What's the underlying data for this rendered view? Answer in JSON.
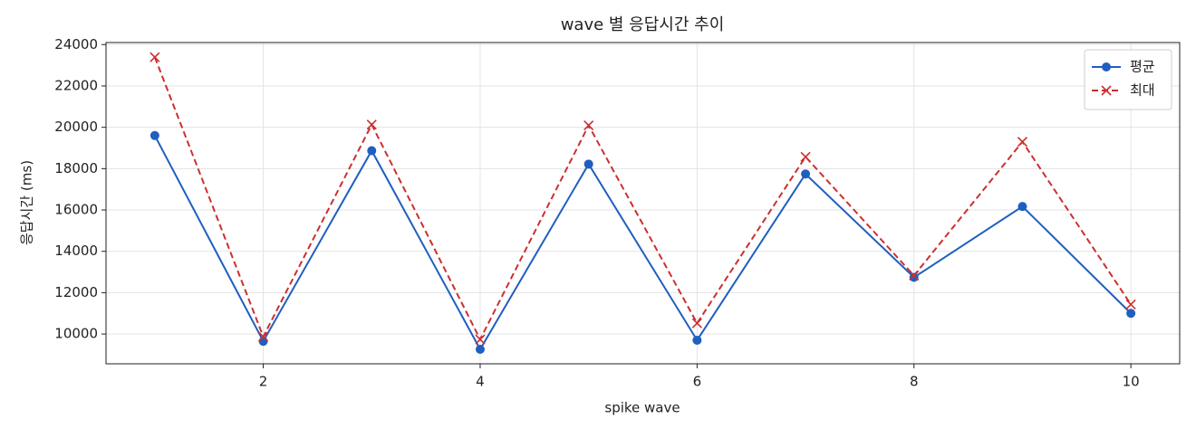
{
  "chart_data": {
    "type": "line",
    "title": "wave 별 응답시간 추이",
    "xlabel": "spike wave",
    "ylabel": "응답시간 (ms)",
    "x": [
      1,
      2,
      3,
      4,
      5,
      6,
      7,
      8,
      9,
      10
    ],
    "series": [
      {
        "name": "평균",
        "color": "#1f5fbf",
        "marker": "o",
        "dash": "solid",
        "values": [
          19600,
          9650,
          18870,
          9260,
          18220,
          9700,
          17740,
          12740,
          16170,
          11000
        ]
      },
      {
        "name": "최대",
        "color": "#cc2f2f",
        "marker": "x",
        "dash": "dashed",
        "values": [
          23390,
          9870,
          20130,
          9740,
          20090,
          10520,
          18570,
          12830,
          19300,
          11430
        ]
      }
    ],
    "xlim": [
      0.55,
      10.45
    ],
    "xticks": [
      2,
      4,
      6,
      8,
      10
    ],
    "ylim": [
      8560,
      24100
    ],
    "yticks": [
      10000,
      12000,
      14000,
      16000,
      18000,
      20000,
      22000,
      24000
    ],
    "grid": true,
    "legend": "upper right"
  }
}
